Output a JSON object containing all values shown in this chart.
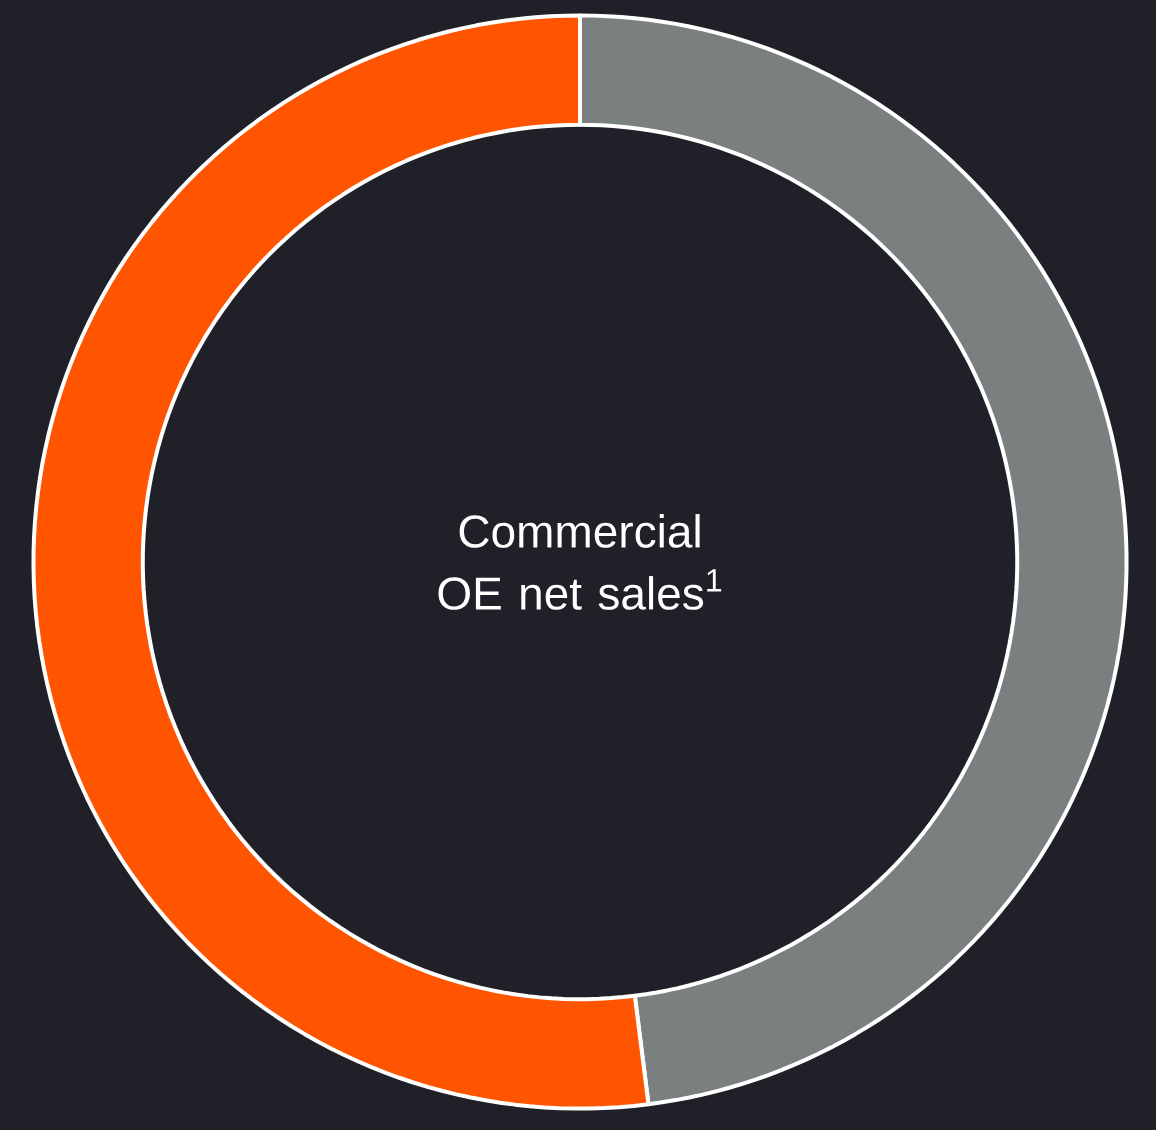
{
  "chart_data": {
    "type": "donut",
    "title": "Commercial OE net sales$^{1}$",
    "categories": [
      null,
      null
    ],
    "values": [
      48,
      52
    ],
    "colors": [
      "#7a7f80",
      "#ff5500"
    ]
  }
}
